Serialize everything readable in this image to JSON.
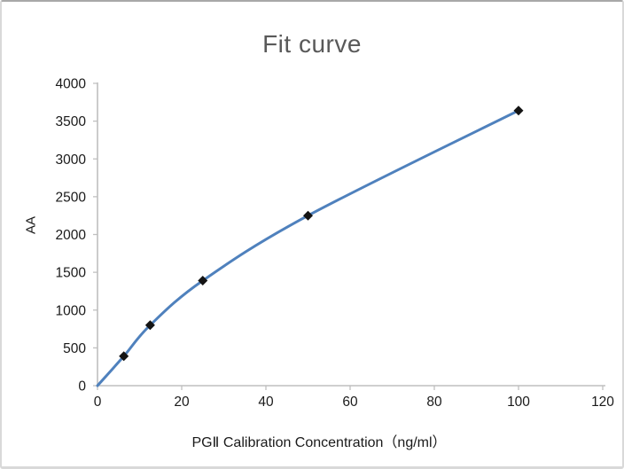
{
  "window": {
    "background": "#ffffff",
    "border_color": "#d9d9d9",
    "border_top_color": "#a8a8a8"
  },
  "chart_data": {
    "type": "line",
    "title": "Fit curve",
    "xlabel": "PGⅡ Calibration Concentration（ng/ml）",
    "ylabel": "AA",
    "series": [
      {
        "name": "fit-curve",
        "x": [
          0,
          6.25,
          12.5,
          25,
          50,
          100
        ],
        "y": [
          0,
          390,
          800,
          1390,
          2250,
          3640
        ],
        "line_color": "#4f81bd",
        "line_width": 3,
        "smooth": true
      }
    ],
    "markers": {
      "shape": "diamond",
      "color": "#141414",
      "size": 11,
      "points": [
        {
          "x": 6.25,
          "y": 390
        },
        {
          "x": 12.5,
          "y": 800
        },
        {
          "x": 25,
          "y": 1390
        },
        {
          "x": 50,
          "y": 2250
        },
        {
          "x": 100,
          "y": 3640
        }
      ]
    },
    "xlim": [
      0,
      120
    ],
    "ylim": [
      0,
      4000
    ],
    "x_ticks": [
      0,
      20,
      40,
      60,
      80,
      100,
      120
    ],
    "y_ticks": [
      0,
      500,
      1000,
      1500,
      2000,
      2500,
      3000,
      3500,
      4000
    ],
    "grid": false,
    "legend": false,
    "axis_color": "#bfbfbf",
    "tick_label_color": "#1a1a1a",
    "title_color": "#595959"
  }
}
